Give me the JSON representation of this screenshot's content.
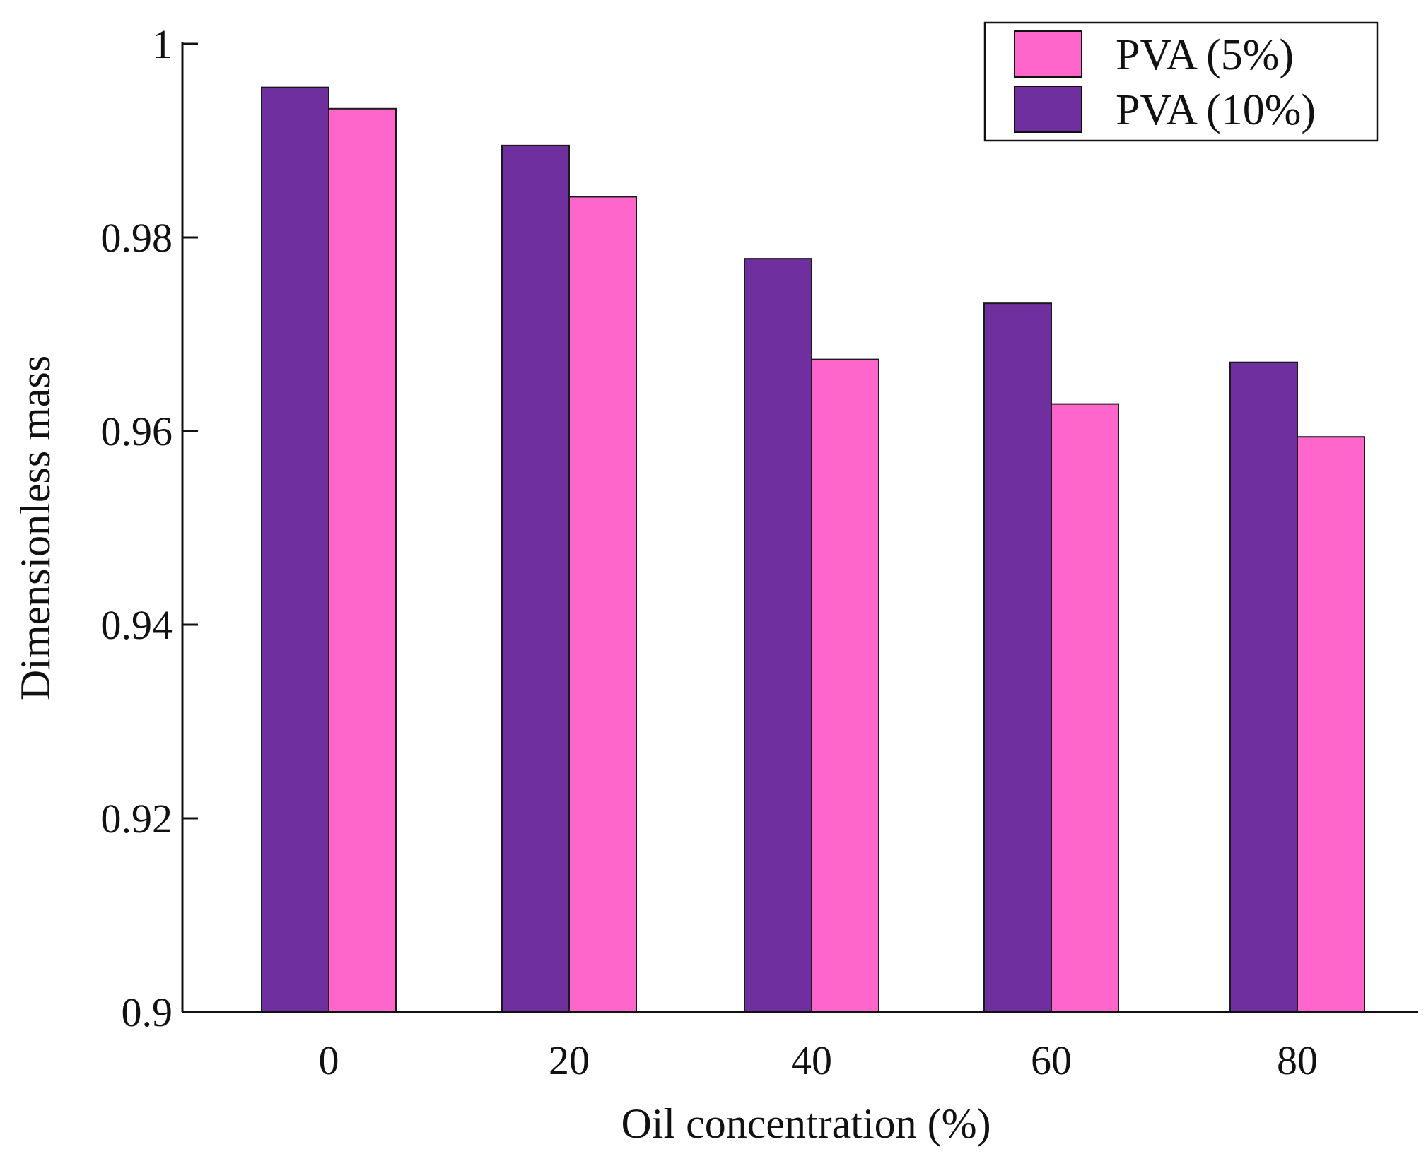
{
  "chart_data": {
    "type": "bar",
    "title": "",
    "xlabel": "Oil concentration (%)",
    "ylabel": "Dimensionless mass",
    "categories": [
      "0",
      "20",
      "40",
      "60",
      "80"
    ],
    "ylim": [
      0.9,
      1.0
    ],
    "yticks": [
      0.9,
      0.92,
      0.94,
      0.96,
      0.98,
      1.0
    ],
    "ytick_labels": [
      "0.9",
      "0.92",
      "0.94",
      "0.96",
      "0.98",
      "1"
    ],
    "grid": false,
    "legend_position": "top-right",
    "series": [
      {
        "name": "PVA (10%)",
        "color": "#6f2f9f",
        "values": [
          0.9955,
          0.9895,
          0.9778,
          0.9732,
          0.9671
        ]
      },
      {
        "name": "PVA (5%)",
        "color": "#ff66cc",
        "values": [
          0.9933,
          0.9842,
          0.9674,
          0.9628,
          0.9594
        ]
      }
    ],
    "legend": [
      "PVA (5%)",
      "PVA (10%)"
    ]
  }
}
